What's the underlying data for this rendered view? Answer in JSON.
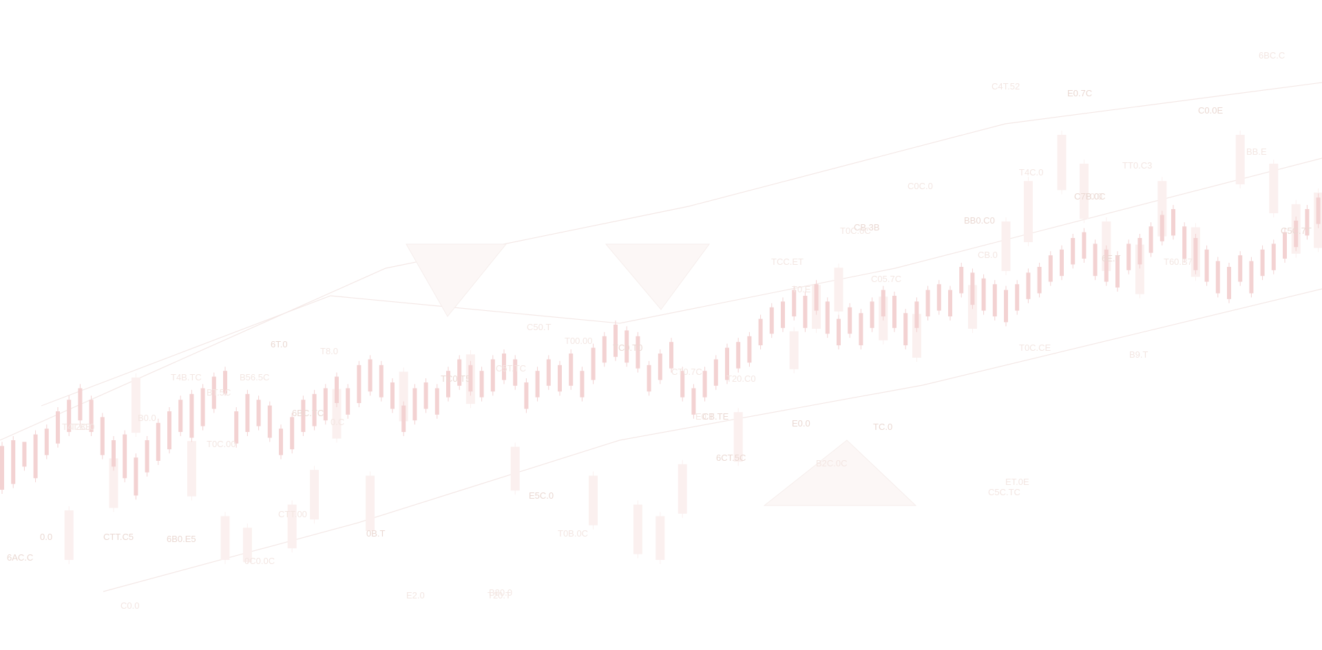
{
  "background": {
    "kind": "decorative-candlestick-watermark",
    "colors": {
      "page": "#ffffff",
      "candle_front": "#f3d2d2",
      "candle_back": "#fbf0ef",
      "line": "#f4e8e6",
      "label": "#ead8d2"
    },
    "candles_front": [
      [
        0,
        20,
        10,
        28
      ],
      [
        1,
        22,
        12,
        30
      ],
      [
        2,
        28,
        18,
        24
      ],
      [
        3,
        22,
        14,
        32
      ],
      [
        4,
        30,
        22,
        34
      ],
      [
        5,
        36,
        26,
        40
      ],
      [
        6,
        38,
        30,
        44
      ],
      [
        7,
        44,
        34,
        48
      ],
      [
        8,
        40,
        30,
        44
      ],
      [
        9,
        34,
        22,
        38
      ],
      [
        10,
        28,
        18,
        30
      ],
      [
        11,
        22,
        14,
        32
      ],
      [
        12,
        18,
        8,
        24
      ],
      [
        13,
        26,
        16,
        30
      ],
      [
        14,
        28,
        20,
        36
      ],
      [
        15,
        34,
        24,
        40
      ],
      [
        16,
        40,
        30,
        44
      ],
      [
        17,
        38,
        28,
        46
      ],
      [
        18,
        44,
        32,
        48
      ],
      [
        19,
        44,
        38,
        52
      ],
      [
        20,
        48,
        44,
        54
      ],
      [
        21,
        36,
        26,
        40
      ],
      [
        22,
        38,
        30,
        46
      ],
      [
        23,
        40,
        32,
        44
      ],
      [
        24,
        36,
        28,
        42
      ],
      [
        25,
        30,
        22,
        34
      ],
      [
        26,
        32,
        24,
        38
      ],
      [
        27,
        38,
        30,
        44
      ],
      [
        28,
        40,
        32,
        46
      ],
      [
        29,
        42,
        34,
        48
      ],
      [
        30,
        48,
        40,
        52
      ],
      [
        31,
        44,
        36,
        48
      ],
      [
        32,
        50,
        40,
        56
      ],
      [
        33,
        54,
        44,
        58
      ],
      [
        34,
        52,
        42,
        56
      ],
      [
        35,
        48,
        38,
        50
      ],
      [
        36,
        40,
        30,
        42
      ],
      [
        37,
        42,
        34,
        48
      ],
      [
        38,
        46,
        38,
        50
      ],
      [
        39,
        46,
        36,
        48
      ],
      [
        40,
        50,
        42,
        54
      ],
      [
        41,
        54,
        46,
        58
      ],
      [
        42,
        52,
        44,
        56
      ],
      [
        43,
        50,
        42,
        54
      ],
      [
        44,
        52,
        44,
        58
      ],
      [
        45,
        56,
        48,
        60
      ],
      [
        46,
        56,
        46,
        58
      ],
      [
        47,
        46,
        38,
        50
      ],
      [
        48,
        50,
        42,
        54
      ],
      [
        49,
        54,
        46,
        58
      ],
      [
        50,
        54,
        44,
        56
      ],
      [
        51,
        56,
        46,
        60
      ],
      [
        52,
        50,
        42,
        54
      ],
      [
        53,
        56,
        48,
        62
      ],
      [
        54,
        62,
        54,
        66
      ],
      [
        55,
        64,
        56,
        70
      ],
      [
        56,
        64,
        54,
        68
      ],
      [
        57,
        62,
        52,
        66
      ],
      [
        58,
        52,
        44,
        56
      ],
      [
        59,
        56,
        48,
        60
      ],
      [
        60,
        60,
        52,
        64
      ],
      [
        61,
        52,
        42,
        54
      ],
      [
        62,
        44,
        36,
        48
      ],
      [
        63,
        50,
        42,
        54
      ],
      [
        64,
        54,
        46,
        58
      ],
      [
        65,
        56,
        48,
        62
      ],
      [
        66,
        60,
        52,
        64
      ],
      [
        67,
        62,
        54,
        66
      ],
      [
        68,
        68,
        60,
        72
      ],
      [
        69,
        72,
        64,
        76
      ],
      [
        70,
        74,
        66,
        78
      ],
      [
        71,
        78,
        70,
        82
      ],
      [
        72,
        76,
        66,
        80
      ],
      [
        73,
        80,
        72,
        84
      ],
      [
        74,
        74,
        64,
        78
      ],
      [
        75,
        68,
        60,
        72
      ],
      [
        76,
        72,
        64,
        76
      ],
      [
        77,
        70,
        60,
        74
      ],
      [
        78,
        74,
        66,
        78
      ],
      [
        79,
        78,
        70,
        82
      ],
      [
        80,
        76,
        66,
        80
      ],
      [
        81,
        70,
        60,
        74
      ],
      [
        82,
        74,
        66,
        78
      ],
      [
        83,
        78,
        70,
        82
      ],
      [
        84,
        80,
        72,
        84
      ],
      [
        85,
        80,
        70,
        82
      ],
      [
        86,
        86,
        78,
        90
      ],
      [
        87,
        84,
        74,
        88
      ],
      [
        88,
        82,
        72,
        86
      ],
      [
        89,
        80,
        70,
        84
      ],
      [
        90,
        78,
        68,
        82
      ],
      [
        91,
        80,
        72,
        84
      ],
      [
        92,
        84,
        76,
        88
      ],
      [
        93,
        86,
        78,
        90
      ],
      [
        94,
        90,
        82,
        94
      ],
      [
        95,
        92,
        84,
        96
      ],
      [
        96,
        96,
        88,
        100
      ],
      [
        97,
        98,
        90,
        102
      ],
      [
        98,
        94,
        84,
        98
      ],
      [
        99,
        92,
        82,
        96
      ],
      [
        100,
        90,
        80,
        94
      ],
      [
        101,
        94,
        86,
        98
      ],
      [
        102,
        96,
        88,
        100
      ],
      [
        103,
        100,
        92,
        104
      ],
      [
        104,
        104,
        96,
        108
      ],
      [
        105,
        106,
        98,
        110
      ],
      [
        106,
        100,
        90,
        104
      ],
      [
        107,
        96,
        86,
        100
      ],
      [
        108,
        92,
        82,
        96
      ],
      [
        109,
        88,
        78,
        92
      ],
      [
        110,
        86,
        76,
        90
      ],
      [
        111,
        90,
        82,
        94
      ],
      [
        112,
        88,
        78,
        92
      ],
      [
        113,
        92,
        84,
        96
      ],
      [
        114,
        94,
        86,
        98
      ],
      [
        115,
        98,
        90,
        102
      ],
      [
        116,
        102,
        94,
        106
      ],
      [
        117,
        106,
        98,
        110
      ],
      [
        118,
        110,
        102,
        114
      ],
      [
        119,
        112,
        104,
        116
      ],
      [
        120,
        116,
        108,
        120
      ]
    ],
    "candles_back": [
      [
        6,
        14,
        0,
        20
      ],
      [
        10,
        30,
        18,
        38
      ],
      [
        12,
        58,
        44,
        66
      ],
      [
        17,
        36,
        22,
        44
      ],
      [
        20,
        10,
        0,
        18
      ],
      [
        22,
        4,
        0,
        14
      ],
      [
        26,
        14,
        4,
        22
      ],
      [
        28,
        26,
        14,
        34
      ],
      [
        30,
        54,
        42,
        62
      ],
      [
        33,
        24,
        10,
        32
      ],
      [
        36,
        60,
        48,
        68
      ],
      [
        42,
        66,
        54,
        74
      ],
      [
        46,
        34,
        24,
        42
      ],
      [
        53,
        24,
        12,
        32
      ],
      [
        57,
        14,
        2,
        22
      ],
      [
        59,
        8,
        0,
        18
      ],
      [
        61,
        28,
        16,
        36
      ],
      [
        66,
        46,
        34,
        54
      ],
      [
        71,
        76,
        66,
        82
      ],
      [
        73,
        90,
        80,
        98
      ],
      [
        75,
        96,
        86,
        104
      ],
      [
        79,
        86,
        76,
        94
      ],
      [
        82,
        80,
        70,
        88
      ],
      [
        87,
        90,
        80,
        98
      ],
      [
        90,
        112,
        100,
        120
      ],
      [
        92,
        124,
        110,
        134
      ],
      [
        95,
        140,
        128,
        150
      ],
      [
        97,
        130,
        118,
        140
      ],
      [
        99,
        112,
        100,
        120
      ],
      [
        102,
        104,
        92,
        112
      ],
      [
        104,
        126,
        112,
        134
      ],
      [
        107,
        110,
        98,
        118
      ],
      [
        111,
        142,
        130,
        150
      ],
      [
        114,
        132,
        120,
        140
      ],
      [
        116,
        118,
        106,
        126
      ],
      [
        118,
        120,
        108,
        130
      ]
    ],
    "labels": [
      "6AC.C",
      "C0.0",
      "T2C.0",
      "0.0",
      "T4B.TC",
      "B0.0",
      "6B0.E5",
      "T0C.00",
      "0C0.0C",
      "6T.0",
      "CTT.00",
      "T8.0",
      "6BC.TC",
      "B56.5C",
      "E2.0",
      "0B.T",
      "B80.0",
      "T0B.0C",
      "E5C.0",
      "T20.T",
      "C50.T",
      "TC0.T0",
      "CT0.7C",
      "E0.T",
      "6CT.5C",
      "T20.C0",
      "B2C.0C",
      "E0.0",
      "TCC.ET",
      "T0.E",
      "CB.3B",
      "C05.7C",
      "C0C.0",
      "BB0.C0",
      "C5C.TC",
      "T0C.CE",
      "E0.7C",
      "T0.0",
      "C4T.52",
      "6E.T",
      "TT0.C3",
      "T60.B7",
      "C0.0E",
      "BB.E",
      "6BC.C",
      "C5C.7T",
      "T4C.0",
      "B9.T",
      "C7B.0C",
      "CB.0",
      "T0C.0C",
      "CB.TE",
      "T00.00",
      "C5T.TC",
      "TC0.T5",
      "0.C",
      "BT.5C",
      "CTT.C5",
      "T4T.BB",
      "ET.0E",
      "TC.0"
    ]
  }
}
